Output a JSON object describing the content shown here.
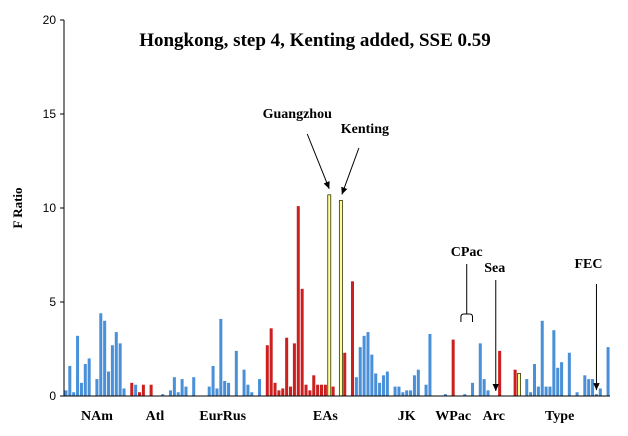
{
  "chart_data": {
    "type": "bar",
    "title": "Hongkong, step 4, Kenting added, SSE 0.59",
    "ylabel": "F Ratio",
    "xlabel": "",
    "ylim": [
      0,
      20
    ],
    "yticks": [
      0,
      5,
      10,
      15,
      20
    ],
    "grid": false,
    "colors": {
      "blue": "#4a90d9",
      "red": "#cc1f1f",
      "yellow": "#ffff99"
    },
    "values": [
      0.3,
      1.6,
      0.2,
      3.2,
      0.7,
      1.7,
      2.0,
      0.0,
      0.9,
      4.4,
      4.0,
      1.3,
      2.7,
      3.4,
      2.8,
      0.4,
      0.0,
      0.7,
      0.6,
      0.2,
      0.6,
      0.0,
      0.6,
      0.0,
      0.0,
      0.1,
      0.0,
      0.3,
      1.0,
      0.2,
      0.9,
      0.5,
      0.0,
      1.0,
      0.0,
      0.0,
      0.0,
      0.5,
      1.6,
      0.4,
      4.1,
      0.8,
      0.7,
      0.0,
      2.4,
      0.0,
      1.4,
      0.6,
      0.2,
      0.0,
      0.9,
      0.0,
      2.7,
      3.6,
      0.7,
      0.3,
      0.4,
      3.1,
      0.5,
      2.8,
      10.1,
      5.7,
      0.6,
      0.3,
      1.1,
      0.6,
      0.6,
      0.6,
      10.7,
      0.5,
      0.0,
      10.4,
      2.3,
      0.0,
      6.1,
      1.0,
      2.6,
      3.2,
      3.4,
      2.2,
      1.2,
      0.7,
      1.1,
      1.3,
      0.0,
      0.5,
      0.5,
      0.2,
      0.3,
      0.3,
      1.1,
      1.4,
      0.0,
      0.6,
      3.3,
      0.0,
      0.0,
      0.0,
      0.1,
      0.0,
      3.0,
      0.0,
      0.0,
      0.1,
      0.0,
      0.7,
      0.0,
      2.8,
      0.9,
      0.3,
      0.0,
      0.0,
      2.4,
      0.0,
      0.0,
      0.0,
      1.4,
      1.2,
      0.0,
      0.9,
      0.2,
      1.7,
      0.5,
      4.0,
      0.5,
      0.5,
      3.5,
      1.5,
      1.8,
      0.0,
      2.3,
      0.0,
      0.2,
      0.0,
      1.1,
      0.9,
      0.9,
      0.1,
      0.4,
      0.0,
      2.6
    ],
    "bar_colors": [
      "blue",
      "blue",
      "blue",
      "blue",
      "blue",
      "blue",
      "blue",
      "blue",
      "blue",
      "blue",
      "blue",
      "blue",
      "blue",
      "blue",
      "blue",
      "blue",
      "blue",
      "red",
      "blue",
      "red",
      "red",
      "blue",
      "red",
      "blue",
      "blue",
      "blue",
      "blue",
      "blue",
      "blue",
      "blue",
      "blue",
      "blue",
      "blue",
      "blue",
      "blue",
      "blue",
      "blue",
      "blue",
      "blue",
      "blue",
      "blue",
      "blue",
      "blue",
      "blue",
      "blue",
      "blue",
      "blue",
      "blue",
      "blue",
      "blue",
      "blue",
      "blue",
      "red",
      "red",
      "red",
      "red",
      "red",
      "red",
      "red",
      "red",
      "red",
      "red",
      "red",
      "red",
      "red",
      "red",
      "red",
      "red",
      "yellow",
      "red",
      "red",
      "yellow",
      "red",
      "red",
      "red",
      "blue",
      "blue",
      "blue",
      "blue",
      "blue",
      "blue",
      "blue",
      "blue",
      "blue",
      "blue",
      "blue",
      "blue",
      "blue",
      "blue",
      "blue",
      "blue",
      "blue",
      "blue",
      "blue",
      "blue",
      "blue",
      "blue",
      "blue",
      "blue",
      "blue",
      "red",
      "blue",
      "blue",
      "blue",
      "blue",
      "blue",
      "blue",
      "blue",
      "blue",
      "blue",
      "blue",
      "blue",
      "red",
      "blue",
      "blue",
      "blue",
      "red",
      "yellow",
      "blue",
      "blue",
      "blue",
      "blue",
      "blue",
      "blue",
      "blue",
      "blue",
      "blue",
      "blue",
      "blue",
      "blue",
      "blue",
      "blue",
      "blue",
      "blue",
      "blue",
      "blue",
      "blue",
      "blue",
      "blue",
      "blue",
      "blue",
      "blue",
      "blue"
    ],
    "groups": [
      {
        "label": "NAm",
        "start": 0
      },
      {
        "label": "Atl",
        "start": 17
      },
      {
        "label": "EurRus",
        "start": 30
      },
      {
        "label": "EAs",
        "start": 52
      },
      {
        "label": "JK",
        "start": 83
      },
      {
        "label": "WPac",
        "start": 94
      },
      {
        "label": "Arc",
        "start": 107
      },
      {
        "label": "Type",
        "start": 115
      }
    ],
    "annotations": [
      {
        "label": "Guangzhou",
        "target": 68
      },
      {
        "label": "Kenting",
        "target": 71
      },
      {
        "label": "CPac",
        "target_range": [
          102,
          105
        ]
      },
      {
        "label": "Sea",
        "target": 111
      },
      {
        "label": "FEC",
        "target": 137
      }
    ]
  }
}
